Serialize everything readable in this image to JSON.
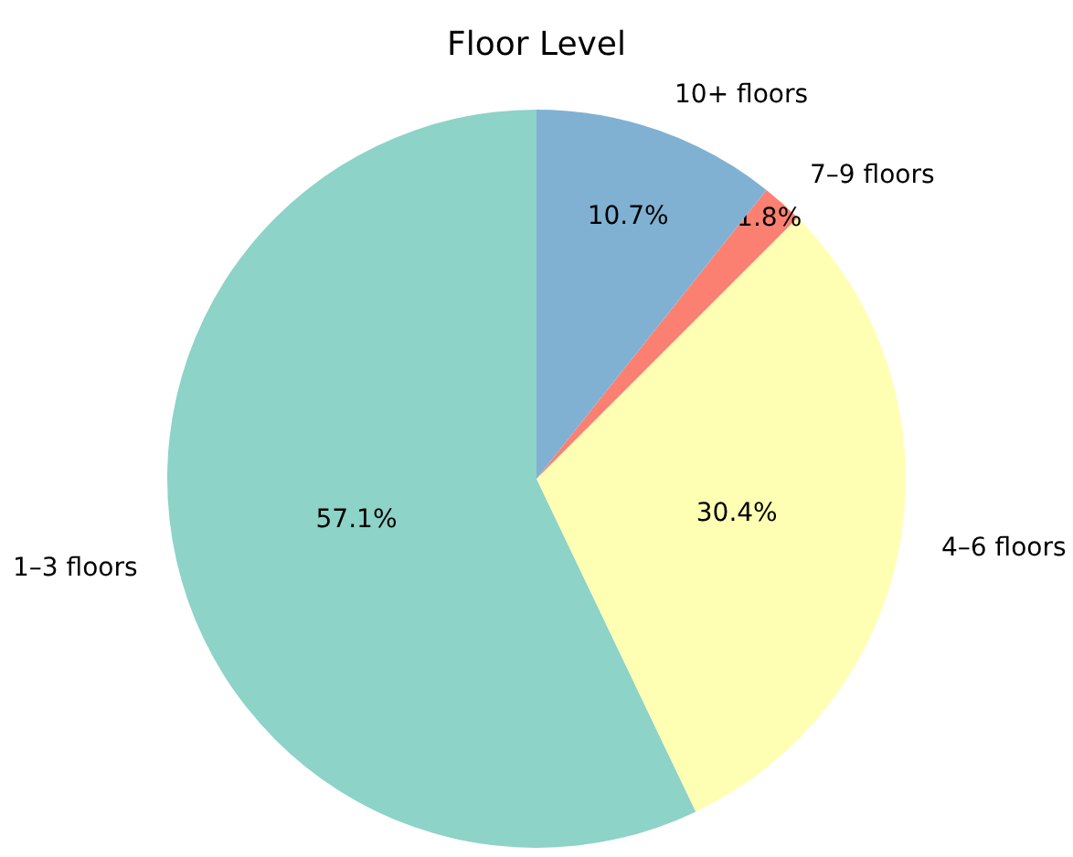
{
  "chart_data": {
    "type": "pie",
    "title": "Floor Level",
    "categories": [
      "1–3 floors",
      "4–6 floors",
      "7–9 floors",
      "10+ floors"
    ],
    "values": [
      57.1,
      30.4,
      1.8,
      10.7
    ],
    "value_labels": [
      "57.1%",
      "30.4%",
      "1.8%",
      "10.7%"
    ],
    "colors": [
      "#8dd3c7",
      "#ffffb3",
      "#fb8072",
      "#80b1d3"
    ],
    "legend": false
  }
}
